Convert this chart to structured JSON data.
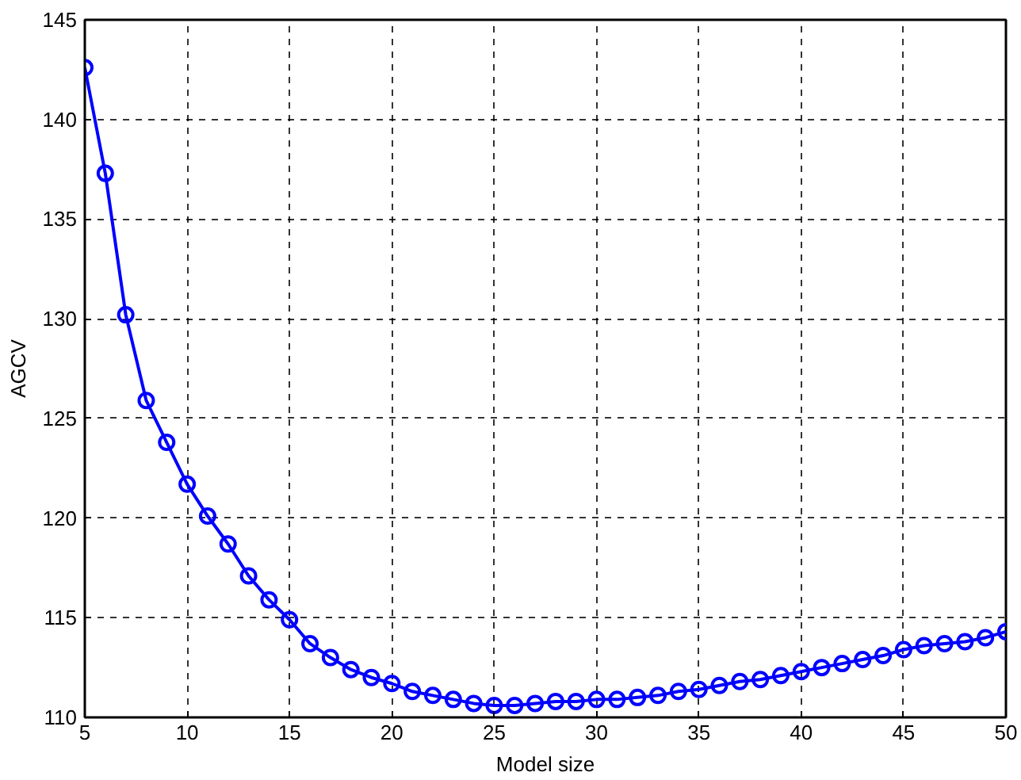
{
  "chart_data": {
    "type": "line",
    "xlabel": "Model size",
    "ylabel": "AGCV",
    "x": [
      5,
      6,
      7,
      8,
      9,
      10,
      11,
      12,
      13,
      14,
      15,
      16,
      17,
      18,
      19,
      20,
      21,
      22,
      23,
      24,
      25,
      26,
      27,
      28,
      29,
      30,
      31,
      32,
      33,
      34,
      35,
      36,
      37,
      38,
      39,
      40,
      41,
      42,
      43,
      44,
      45,
      46,
      47,
      48,
      49,
      50
    ],
    "series": [
      {
        "color": "#0000ff",
        "values": [
          142.6,
          137.3,
          130.2,
          125.9,
          123.8,
          121.7,
          120.1,
          118.7,
          117.1,
          115.9,
          114.9,
          113.7,
          113.0,
          112.4,
          112.0,
          111.7,
          111.3,
          111.1,
          110.9,
          110.7,
          110.6,
          110.6,
          110.7,
          110.8,
          110.8,
          110.9,
          110.9,
          111.0,
          111.1,
          111.3,
          111.4,
          111.6,
          111.8,
          111.9,
          112.1,
          112.3,
          112.5,
          112.7,
          112.9,
          113.1,
          113.4,
          113.6,
          113.7,
          113.8,
          114.0,
          114.3
        ]
      }
    ],
    "xlim": [
      5,
      50
    ],
    "ylim": [
      110,
      145
    ],
    "xticks": [
      5,
      10,
      15,
      20,
      25,
      30,
      35,
      40,
      45,
      50
    ],
    "yticks": [
      110,
      115,
      120,
      125,
      130,
      135,
      140,
      145
    ],
    "grid": true,
    "marker": "circle",
    "line_style": "solid"
  }
}
